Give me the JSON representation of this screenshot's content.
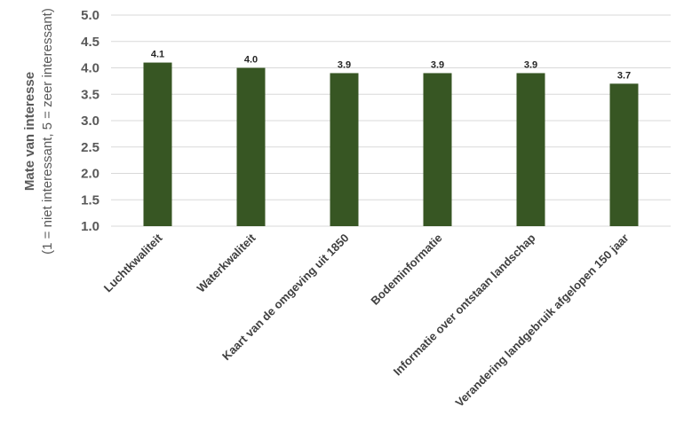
{
  "chart_data": {
    "type": "bar",
    "categories": [
      "Luchtkwaliteit",
      "Waterkwaliteit",
      "Kaart van de omgeving uit 1850",
      "Bodeminformatie",
      "Informatie over ontstaan landschap",
      "Verandering landgebruik afgelopen 150 jaar"
    ],
    "values": [
      4.1,
      4.0,
      3.9,
      3.9,
      3.9,
      3.7
    ],
    "data_labels": [
      "4.1",
      "4.0",
      "3.9",
      "3.9",
      "3.9",
      "3.7"
    ],
    "ylabel": "Mate van interesse",
    "ylabel_sub": "(1 = niet interessant, 5 = zeer interessant)",
    "xlabel": "",
    "ylim": [
      1.0,
      5.0
    ],
    "yticks": [
      "1.0",
      "1.5",
      "2.0",
      "2.5",
      "3.0",
      "3.5",
      "4.0",
      "4.5",
      "5.0"
    ],
    "grid": true,
    "bar_color": "#375623",
    "grid_color": "#d9d9d9"
  }
}
